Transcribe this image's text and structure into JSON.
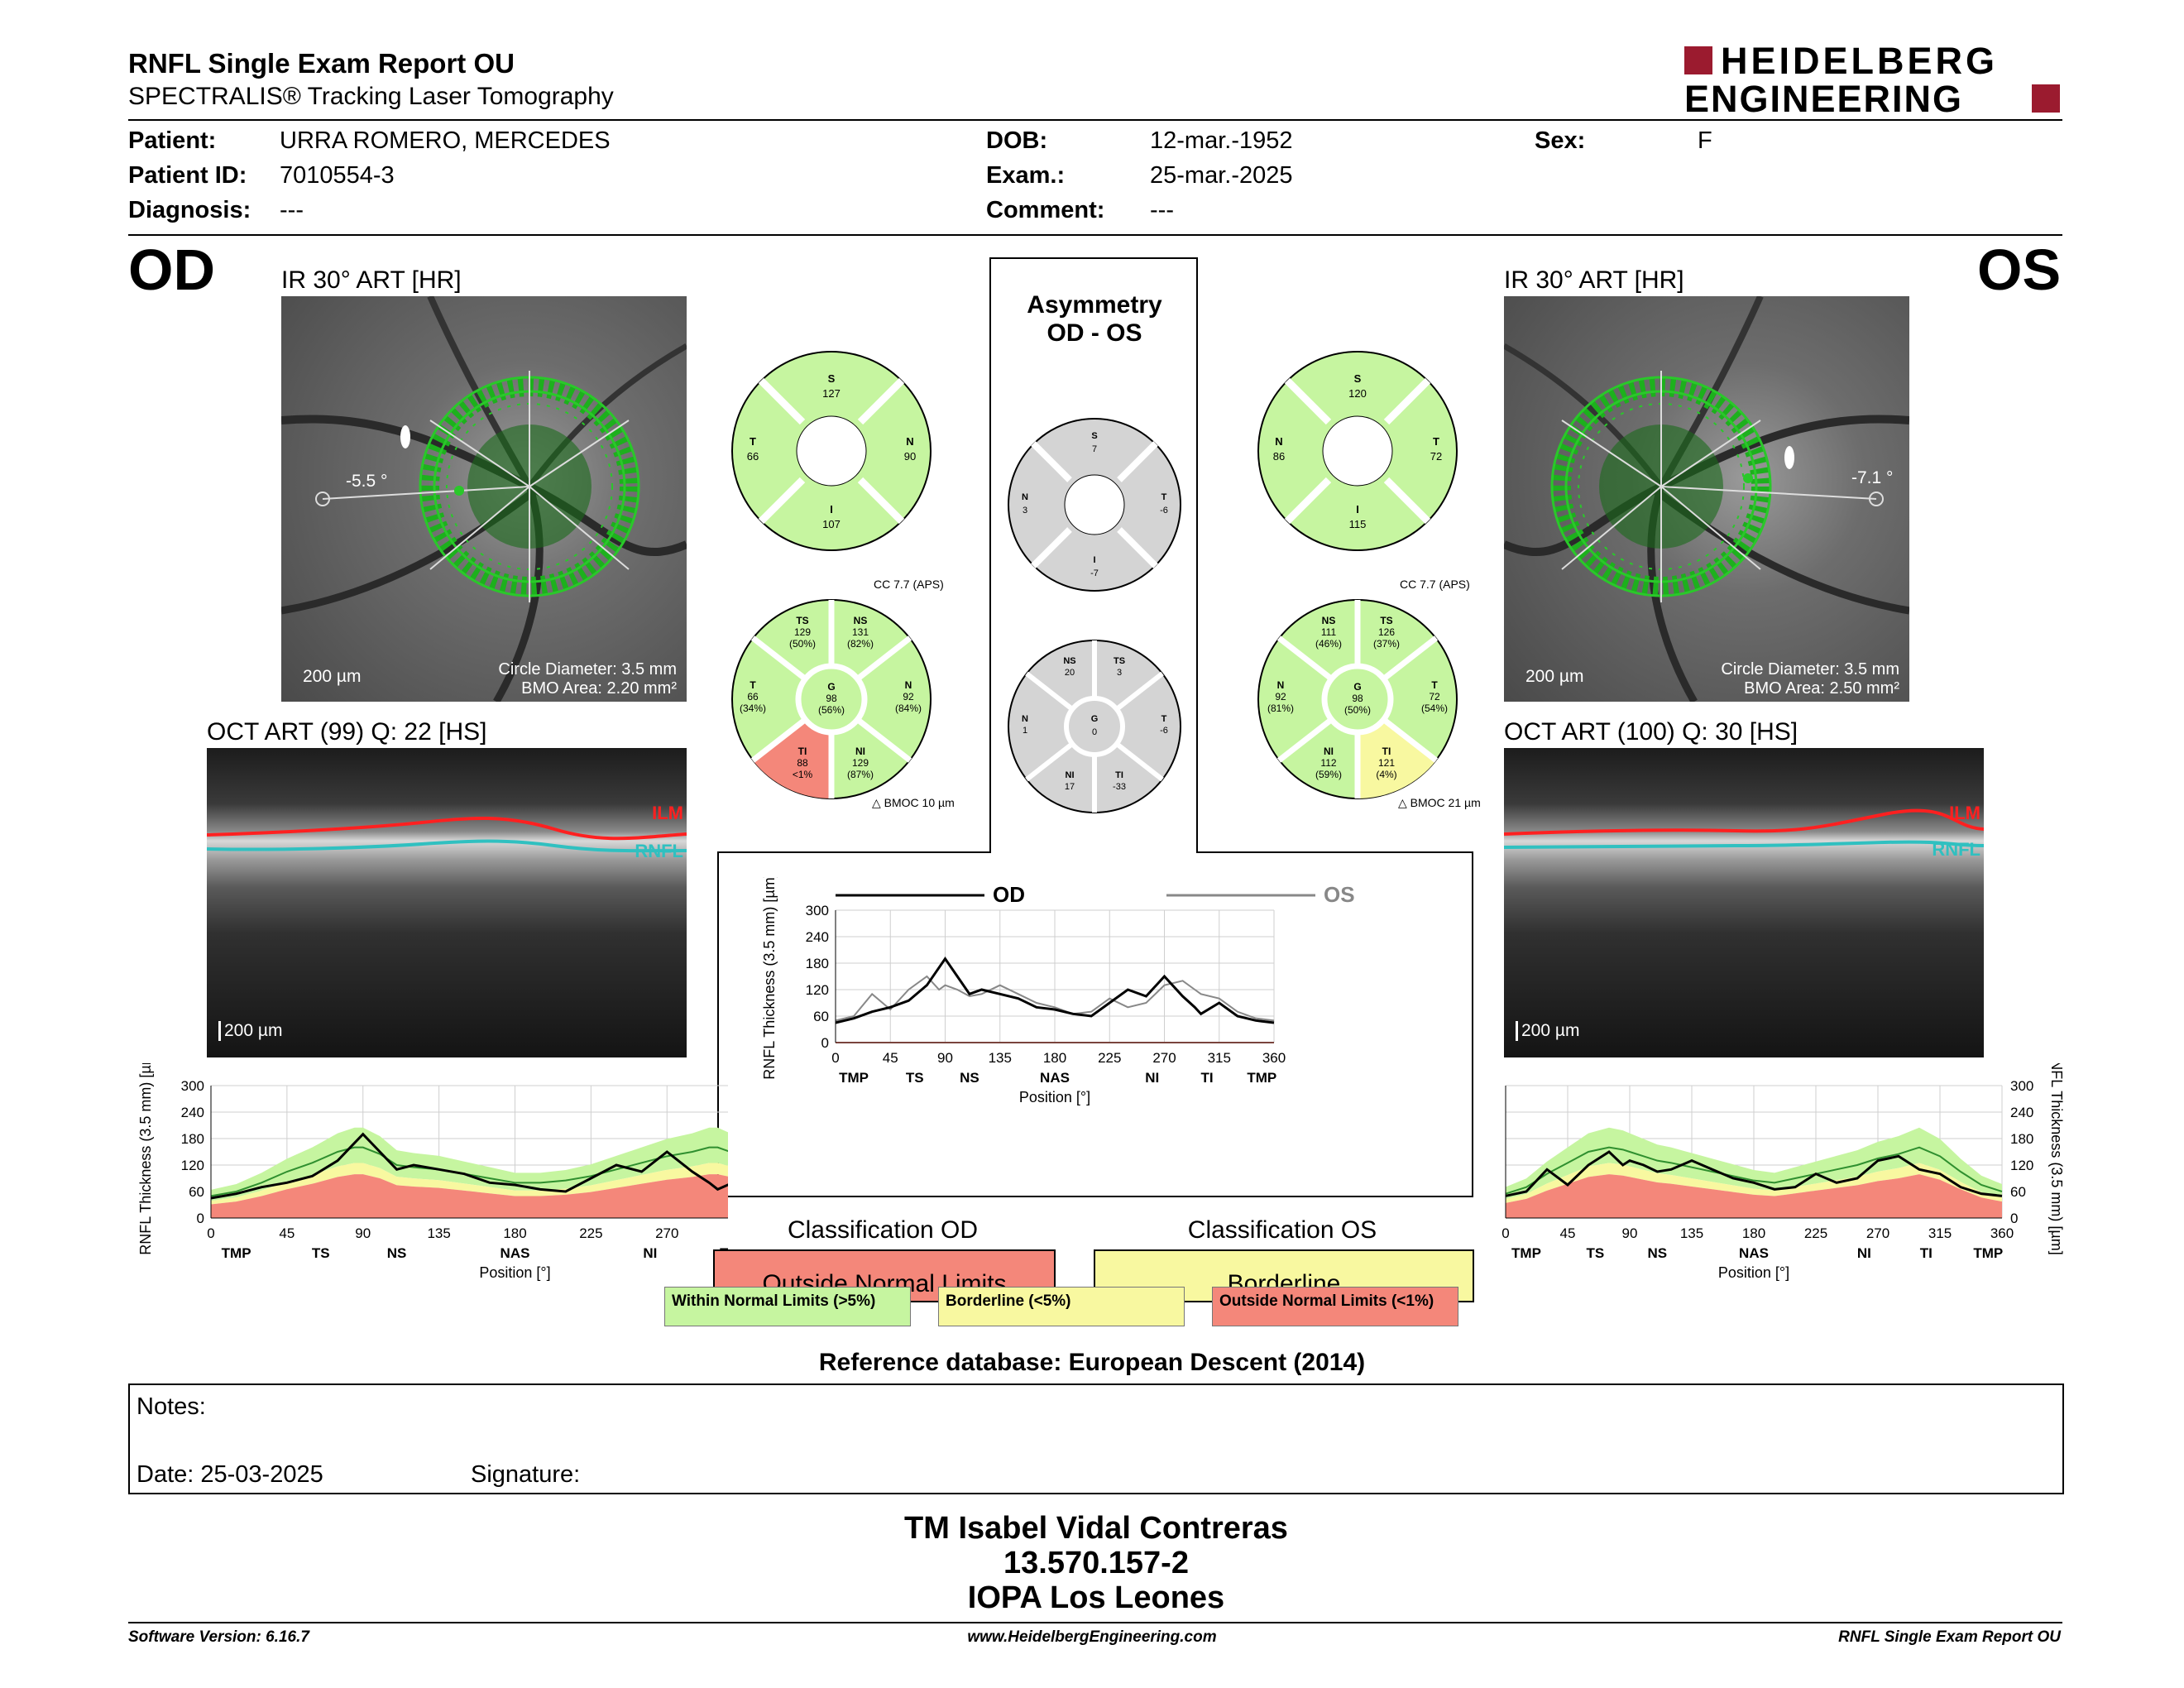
{
  "header": {
    "title": "RNFL Single Exam Report OU",
    "subtitle": "SPECTRALIS® Tracking Laser Tomography",
    "logo_line1": "HEIDELBERG",
    "logo_line2": "ENGINEERING"
  },
  "patient": {
    "patient_label": "Patient:",
    "patient_value": "URRA ROMERO, MERCEDES",
    "id_label": "Patient ID:",
    "id_value": "7010554-3",
    "diag_label": "Diagnosis:",
    "diag_value": "---",
    "dob_label": "DOB:",
    "dob_value": "12-mar.-1952",
    "exam_label": "Exam.:",
    "exam_value": "25-mar.-2025",
    "comment_label": "Comment:",
    "comment_value": "---",
    "sex_label": "Sex:",
    "sex_value": "F"
  },
  "od": {
    "eye": "OD",
    "ir_label": "IR 30° ART [HR]",
    "angle": "-5.5 °",
    "scale": "200 µm",
    "circle": "Circle Diameter: 3.5 mm",
    "bmo": "BMO Area: 2.20 mm²",
    "oct_label": "OCT ART (99) Q: 22 [HS]",
    "oct_scale": "200 µm",
    "sectors4": {
      "S": "127",
      "T": "66",
      "N": "90",
      "I": "107"
    },
    "sectors6": {
      "TS": "129",
      "TS_p": "(50%)",
      "NS": "131",
      "NS_p": "(82%)",
      "T": "66",
      "T_p": "(34%)",
      "G": "98",
      "G_p": "(56%)",
      "N": "92",
      "N_p": "(84%)",
      "TI": "88",
      "TI_p": "<1%",
      "NI": "129",
      "NI_p": "(87%)"
    },
    "cc": "CC 7.7 (APS)",
    "bmoc": "BMOC 10 µm",
    "classification_title": "Classification OD",
    "classification": "Outside Normal Limits"
  },
  "os": {
    "eye": "OS",
    "ir_label": "IR 30° ART [HR]",
    "angle": "-7.1 °",
    "scale": "200 µm",
    "circle": "Circle Diameter: 3.5 mm",
    "bmo": "BMO Area: 2.50 mm²",
    "oct_label": "OCT ART (100) Q: 30 [HS]",
    "oct_scale": "200 µm",
    "sectors4": {
      "S": "120",
      "N": "86",
      "T": "72",
      "I": "115"
    },
    "sectors6": {
      "NS": "111",
      "NS_p": "(46%)",
      "TS": "126",
      "TS_p": "(37%)",
      "N": "92",
      "N_p": "(81%)",
      "G": "98",
      "G_p": "(50%)",
      "T": "72",
      "T_p": "(54%)",
      "NI": "112",
      "NI_p": "(59%)",
      "TI": "121",
      "TI_p": "(4%)"
    },
    "cc": "CC 7.7 (APS)",
    "bmoc": "BMOC 21 µm",
    "classification_title": "Classification OS",
    "classification": "Borderline"
  },
  "asymmetry": {
    "title1": "Asymmetry",
    "title2": "OD - OS",
    "sectors4": {
      "S": "7",
      "N": "3",
      "T": "-6",
      "I": "-7"
    },
    "sectors6": {
      "NS": "20",
      "TS": "3",
      "N": "1",
      "G": "0",
      "T": "-6",
      "NI": "17",
      "TI": "-33"
    },
    "legend_od": "OD",
    "legend_os": "OS"
  },
  "chart_labels": {
    "ylabel": "RNFL Thickness (3.5 mm) [µm]",
    "xlabel": "Position [°]",
    "yticks": [
      "0",
      "60",
      "120",
      "180",
      "240",
      "300"
    ],
    "xticks": [
      "0",
      "45",
      "90",
      "135",
      "180",
      "225",
      "270",
      "315",
      "360"
    ],
    "sector_labels": [
      "TMP",
      "TS",
      "NS",
      "NAS",
      "NI",
      "TI",
      "TMP"
    ]
  },
  "legend": {
    "wnl": "Within Normal Limits (>5%)",
    "bl": "Borderline (<5%)",
    "onl": "Outside Normal Limits (<1%)"
  },
  "reference": "Reference database: European Descent (2014)",
  "notes": {
    "notes_label": "Notes:",
    "date_label": "Date: 25-03-2025",
    "signature_label": "Signature:"
  },
  "signatory": {
    "name": "TM Isabel Vidal Contreras",
    "id": "13.570.157-2",
    "place": "IOPA Los Leones"
  },
  "footer": {
    "version": "Software Version: 6.16.7",
    "website": "www.HeidelbergEngineering.com",
    "report": "RNFL Single Exam Report OU"
  },
  "colors": {
    "green": "#c6f5a0",
    "yellow": "#f8f8a0",
    "red": "#f4877a",
    "gray": "#d4d4d4",
    "logo_red": "#9b1b2f"
  },
  "chart_data": [
    {
      "type": "line",
      "title": "OD",
      "xlabel": "Position [°]",
      "ylabel": "RNFL Thickness (3.5 mm) [µm]",
      "xlim": [
        0,
        360
      ],
      "ylim": [
        0,
        300
      ],
      "x": [
        0,
        15,
        30,
        45,
        60,
        75,
        85,
        90,
        100,
        110,
        120,
        135,
        150,
        165,
        180,
        195,
        210,
        225,
        240,
        255,
        270,
        285,
        295,
        300,
        315,
        330,
        345,
        360
      ],
      "series": [
        {
          "name": "OD",
          "values": [
            45,
            55,
            70,
            80,
            95,
            130,
            170,
            190,
            150,
            110,
            120,
            110,
            100,
            80,
            75,
            65,
            60,
            90,
            120,
            105,
            150,
            105,
            80,
            65,
            90,
            60,
            50,
            45
          ]
        },
        {
          "name": "Normal",
          "values": [
            50,
            60,
            80,
            105,
            125,
            150,
            160,
            160,
            145,
            120,
            115,
            110,
            100,
            90,
            80,
            80,
            85,
            95,
            110,
            125,
            140,
            150,
            160,
            160,
            140,
            100,
            70,
            55
          ]
        }
      ]
    },
    {
      "type": "line",
      "xlabel": "Position [°]",
      "ylabel": "RNFL Thickness (3.5 mm) [µm]",
      "xlim": [
        0,
        360
      ],
      "ylim": [
        0,
        300
      ],
      "x": [
        0,
        15,
        30,
        45,
        60,
        75,
        85,
        90,
        100,
        110,
        120,
        135,
        150,
        165,
        180,
        195,
        210,
        225,
        240,
        255,
        270,
        285,
        295,
        300,
        315,
        330,
        345,
        360
      ],
      "series": [
        {
          "name": "OD",
          "values": [
            45,
            55,
            70,
            80,
            95,
            130,
            170,
            190,
            150,
            110,
            120,
            110,
            100,
            80,
            75,
            65,
            60,
            90,
            120,
            105,
            150,
            105,
            80,
            65,
            90,
            60,
            50,
            45
          ]
        },
        {
          "name": "OS",
          "values": [
            50,
            60,
            110,
            75,
            120,
            150,
            120,
            130,
            120,
            105,
            110,
            130,
            110,
            90,
            80,
            65,
            70,
            100,
            80,
            90,
            130,
            140,
            120,
            110,
            100,
            70,
            55,
            50
          ]
        }
      ]
    },
    {
      "type": "line",
      "title": "OS",
      "xlabel": "Position [°]",
      "ylabel": "RNFL Thickness (3.5 mm) [µm]",
      "xlim": [
        0,
        360
      ],
      "ylim": [
        0,
        300
      ],
      "x": [
        0,
        15,
        30,
        45,
        60,
        75,
        85,
        90,
        100,
        110,
        120,
        135,
        150,
        165,
        180,
        195,
        210,
        225,
        240,
        255,
        270,
        285,
        295,
        300,
        315,
        330,
        345,
        360
      ],
      "series": [
        {
          "name": "OS",
          "values": [
            50,
            60,
            110,
            75,
            120,
            150,
            120,
            130,
            120,
            105,
            110,
            130,
            110,
            90,
            80,
            65,
            70,
            100,
            80,
            90,
            130,
            140,
            120,
            110,
            100,
            70,
            55,
            50
          ]
        },
        {
          "name": "Normal",
          "values": [
            55,
            70,
            100,
            125,
            150,
            160,
            155,
            150,
            140,
            130,
            125,
            115,
            105,
            95,
            85,
            80,
            90,
            100,
            110,
            120,
            135,
            145,
            155,
            160,
            140,
            105,
            75,
            60
          ]
        }
      ]
    }
  ]
}
